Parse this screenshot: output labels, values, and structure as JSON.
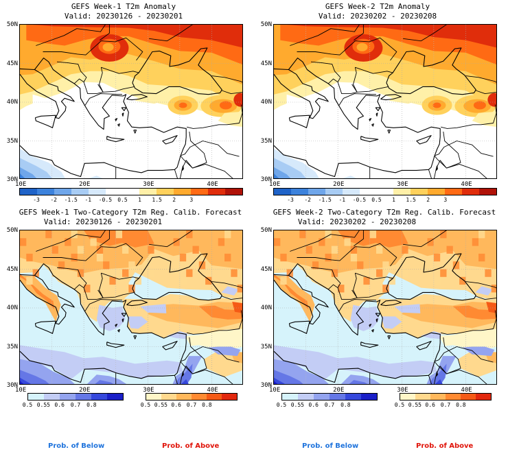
{
  "panels": [
    {
      "title": "GEFS Week-1 T2m Anomaly",
      "valid": "Valid: 20230126 - 20230201",
      "kind": "anomaly"
    },
    {
      "title": "GEFS Week-2 T2m Anomaly",
      "valid": "Valid: 20230202 - 20230208",
      "kind": "anomaly"
    },
    {
      "title": "GEFS Week-1 Two-Category T2m Reg. Calib. Forecast",
      "valid": "Valid: 20230126 - 20230201",
      "kind": "prob"
    },
    {
      "title": "GEFS Week-2 Two-Category T2m Reg. Calib. Forecast",
      "valid": "Valid: 20230202 - 20230208",
      "kind": "prob"
    }
  ],
  "lat_labels": [
    "50N",
    "45N",
    "40N",
    "35N",
    "30N"
  ],
  "lon_labels": [
    "10E",
    "20E",
    "30E",
    "40E"
  ],
  "anomaly_scale": {
    "ticks": [
      "-3",
      "-2",
      "-1.5",
      "-1",
      "-0.5",
      "0.5",
      "1",
      "1.5",
      "2",
      "3"
    ],
    "colors": [
      "#1f63c8",
      "#3c82dc",
      "#6fa6ea",
      "#a8ccf4",
      "#d6e9fb",
      "#ffffff",
      "#ffffff",
      "#fff0a8",
      "#ffd15c",
      "#ffaa2e",
      "#ff6a14",
      "#e02d0b",
      "#b01208"
    ]
  },
  "prob_below": {
    "ticks": [
      "0.5",
      "0.55",
      "0.6",
      "0.7",
      "0.8"
    ],
    "colors": [
      "#d6f3fb",
      "#c3cdf5",
      "#94a4ef",
      "#6577e6",
      "#3648dc",
      "#1a1fc8"
    ]
  },
  "prob_above": {
    "ticks": [
      "0.5",
      "0.55",
      "0.6",
      "0.7",
      "0.8"
    ],
    "colors": [
      "#fff6c8",
      "#ffd98e",
      "#ffb85c",
      "#ff8a32",
      "#f55a16",
      "#e2280e"
    ]
  },
  "footer": {
    "below": "Prob. of Below",
    "above": "Prob. of Above"
  },
  "colors": {
    "below_text": "#1e73dc",
    "above_text": "#e0140a",
    "sea_prob": "#d6f3fb"
  }
}
